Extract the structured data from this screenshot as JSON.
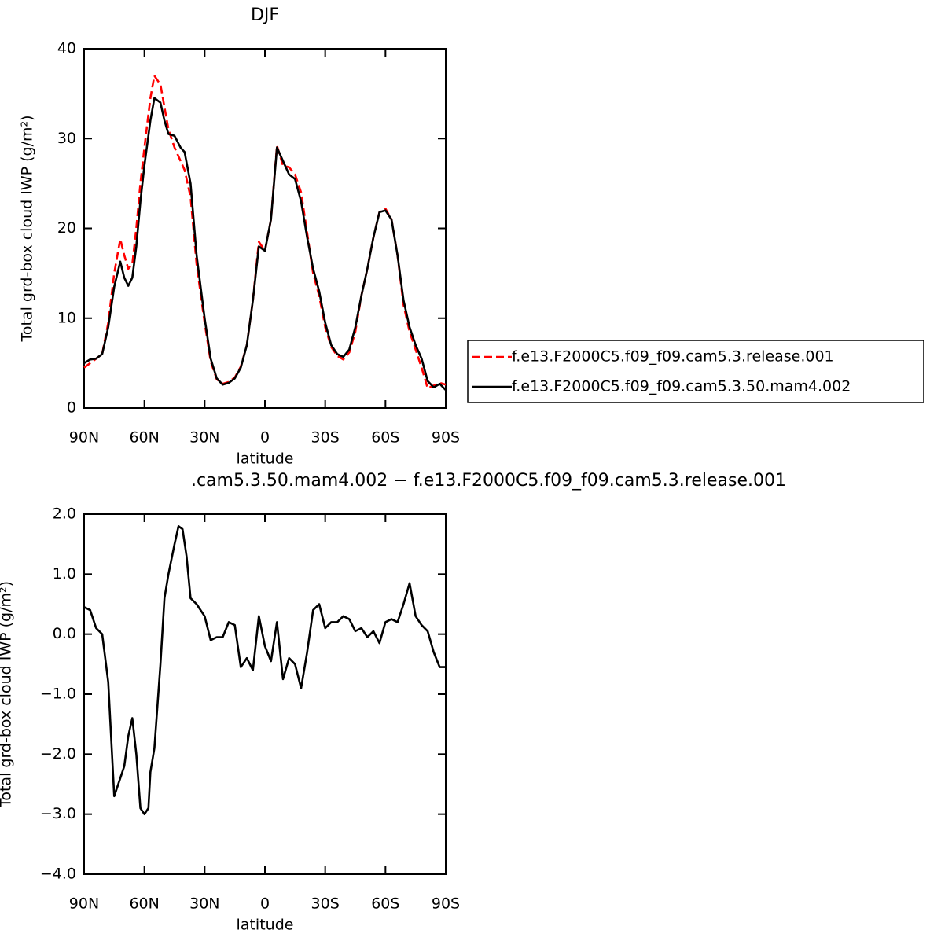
{
  "chart_data": [
    {
      "type": "line",
      "title": "DJF",
      "xlabel": "latitude",
      "ylabel": "Total grd-box cloud IWP (g/m²)",
      "x": [
        90,
        87,
        84,
        81,
        78,
        75,
        72,
        70,
        68,
        66,
        64,
        62,
        60,
        57,
        55,
        52,
        50,
        48,
        45,
        42,
        40,
        37,
        34,
        30,
        27,
        24,
        21,
        18,
        15,
        12,
        9,
        6,
        3,
        0,
        -3,
        -6,
        -9,
        -12,
        -15,
        -18,
        -21,
        -24,
        -27,
        -30,
        -33,
        -36,
        -39,
        -42,
        -45,
        -48,
        -51,
        -54,
        -57,
        -60,
        -63,
        -66,
        -69,
        -72,
        -75,
        -78,
        -81,
        -84,
        -87,
        -90
      ],
      "series": [
        {
          "name": "f.e13.F2000C5.f09_f09.cam5.3.release.001",
          "color": "#ff0000",
          "dash": true,
          "values": [
            4.5,
            5,
            5.5,
            6,
            9.5,
            15,
            18.8,
            17,
            15.5,
            16,
            20,
            25,
            29,
            34.5,
            37,
            36,
            33.5,
            31,
            29,
            27.5,
            26.5,
            23.5,
            16,
            9.5,
            5.2,
            3.2,
            2.7,
            2.9,
            3.4,
            4.6,
            7,
            12,
            18.5,
            17.5,
            21,
            29.2,
            27,
            26.8,
            26,
            24,
            19.5,
            15,
            12.5,
            9,
            6.8,
            5.8,
            5.4,
            6.2,
            8.5,
            12.5,
            15.5,
            19,
            21.8,
            22.2,
            21,
            17,
            11.5,
            8.5,
            6.5,
            4.5,
            2.2,
            2.5,
            2.8,
            2.6
          ]
        },
        {
          "name": "f.e13.F2000C5.f09_f09.cam5.3.50.mam4.002",
          "color": "#000000",
          "dash": false,
          "values": [
            5,
            5.4,
            5.5,
            6,
            9,
            13.5,
            16.3,
            14.5,
            13.6,
            14.5,
            18,
            23,
            27,
            32,
            34.5,
            34,
            32,
            30.5,
            30.3,
            29,
            28.5,
            25,
            17,
            10,
            5.5,
            3.3,
            2.6,
            2.8,
            3.3,
            4.5,
            7,
            12,
            18,
            17.5,
            21,
            29,
            27.5,
            26,
            25.5,
            23,
            19,
            15.5,
            13,
            9.5,
            7,
            6,
            5.7,
            6.5,
            9,
            12.5,
            15.5,
            19,
            21.8,
            22,
            21,
            17,
            12,
            9,
            7,
            5.5,
            3,
            2.3,
            2.7,
            2
          ]
        }
      ],
      "xlim": [
        90,
        -90
      ],
      "xticks": [
        {
          "value": 90,
          "label": "90N"
        },
        {
          "value": 60,
          "label": "60N"
        },
        {
          "value": 30,
          "label": "30N"
        },
        0,
        {
          "value": -30,
          "label": "30S"
        },
        {
          "value": -60,
          "label": "60S"
        },
        {
          "value": -90,
          "label": "90S"
        }
      ],
      "ylim": [
        0,
        40
      ],
      "yticks": [
        0,
        10,
        20,
        30,
        40
      ],
      "grid": false,
      "legend": "right"
    },
    {
      "type": "line",
      "title": ".cam5.3.50.mam4.002 − f.e13.F2000C5.f09_f09.cam5.3.release.001",
      "xlabel": "latitude",
      "ylabel": "Total grd-box cloud IWP (g/m²)",
      "x": [
        90,
        87,
        84,
        81,
        78,
        75,
        72,
        70,
        68,
        66,
        64,
        62,
        60,
        58,
        57,
        55,
        52,
        50,
        48,
        45,
        43,
        41,
        39,
        37,
        34,
        30,
        27,
        24,
        21,
        18,
        15,
        12,
        9,
        6,
        3,
        0,
        -3,
        -6,
        -9,
        -12,
        -15,
        -18,
        -21,
        -24,
        -27,
        -30,
        -33,
        -36,
        -39,
        -42,
        -45,
        -48,
        -51,
        -54,
        -57,
        -60,
        -63,
        -66,
        -69,
        -72,
        -75,
        -78,
        -81,
        -84,
        -87,
        -90
      ],
      "values": [
        0.45,
        0.4,
        0.1,
        0,
        -0.8,
        -2.7,
        -2.4,
        -2.2,
        -1.7,
        -1.4,
        -2,
        -2.9,
        -3,
        -2.9,
        -2.3,
        -1.9,
        -0.5,
        0.6,
        1,
        1.5,
        1.8,
        1.75,
        1.3,
        0.6,
        0.5,
        0.3,
        -0.1,
        -0.05,
        -0.05,
        0.2,
        0.15,
        -0.55,
        -0.4,
        -0.6,
        0.3,
        -0.2,
        -0.45,
        0.2,
        -0.75,
        -0.4,
        -0.5,
        -0.9,
        -0.3,
        0.4,
        0.5,
        0.1,
        0.2,
        0.2,
        0.3,
        0.25,
        0.05,
        0.1,
        -0.05,
        0.05,
        -0.15,
        0.2,
        0.25,
        0.2,
        0.5,
        0.85,
        0.3,
        0.15,
        0.05,
        -0.3,
        -0.55,
        -0.55
      ],
      "color": "#000000",
      "xlim": [
        90,
        -90
      ],
      "xticks": [
        {
          "value": 90,
          "label": "90N"
        },
        {
          "value": 60,
          "label": "60N"
        },
        {
          "value": 30,
          "label": "30N"
        },
        0,
        {
          "value": -30,
          "label": "30S"
        },
        {
          "value": -60,
          "label": "60S"
        },
        {
          "value": -90,
          "label": "90S"
        }
      ],
      "ylim": [
        -4,
        2
      ],
      "yticks": [
        {
          "value": -4,
          "label": "−4.0"
        },
        {
          "value": -3,
          "label": "−3.0"
        },
        {
          "value": -2,
          "label": "−2.0"
        },
        {
          "value": -1,
          "label": "−1.0"
        },
        {
          "value": 0,
          "label": "0.0"
        },
        {
          "value": 1,
          "label": "1.0"
        },
        {
          "value": 2,
          "label": "2.0"
        }
      ],
      "grid": false
    }
  ]
}
